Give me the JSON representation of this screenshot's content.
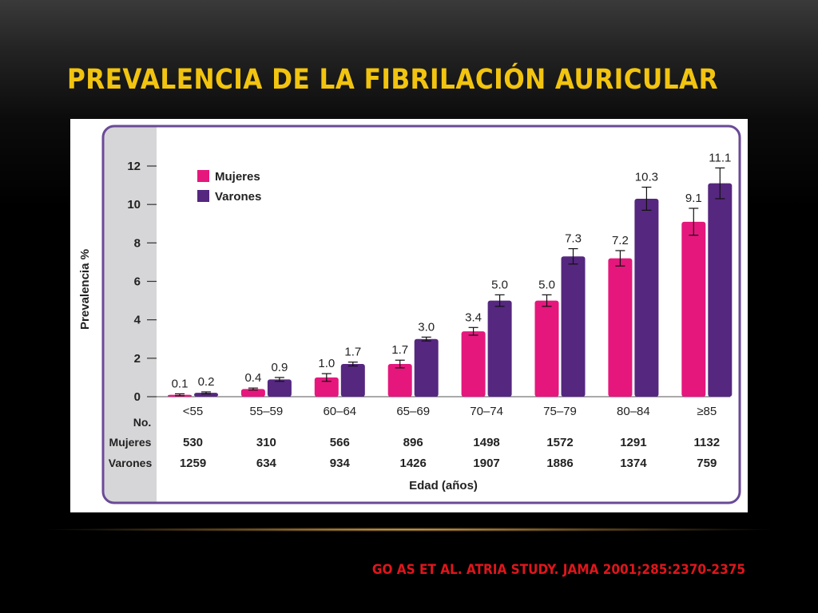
{
  "slide": {
    "title": "PREVALENCIA DE LA FIBRILACIÓN AURICULAR",
    "citation": "GO AS ET AL. ATRIA STUDY. JAMA 2001;285:2370-2375"
  },
  "table": {
    "header": "No.",
    "rows": [
      {
        "label": "Mujeres",
        "values": [
          "530",
          "310",
          "566",
          "896",
          "1498",
          "1572",
          "1291",
          "1132"
        ]
      },
      {
        "label": "Varones",
        "values": [
          "1259",
          "634",
          "934",
          "1426",
          "1907",
          "1886",
          "1374",
          "759"
        ]
      }
    ]
  },
  "chart_data": {
    "type": "bar",
    "title": "",
    "xlabel": "Edad (años)",
    "ylabel": "Prevalencia %",
    "categories": [
      "<55",
      "55–59",
      "60–64",
      "65–69",
      "70–74",
      "75–79",
      "80–84",
      "≥85"
    ],
    "series": [
      {
        "name": "Mujeres",
        "color": "#e5177d",
        "values": [
          0.1,
          0.4,
          1.0,
          1.7,
          3.4,
          5.0,
          7.2,
          9.1
        ],
        "labels": [
          "0.1",
          "0.4",
          "1.0",
          "1.7",
          "3.4",
          "5.0",
          "7.2",
          "9.1"
        ],
        "error": [
          0.05,
          0.05,
          0.2,
          0.2,
          0.2,
          0.3,
          0.4,
          0.7
        ]
      },
      {
        "name": "Varones",
        "color": "#55277f",
        "values": [
          0.2,
          0.9,
          1.7,
          3.0,
          5.0,
          7.3,
          10.3,
          11.1
        ],
        "labels": [
          "0.2",
          "0.9",
          "1.7",
          "3.0",
          "5.0",
          "7.3",
          "10.3",
          "11.1"
        ],
        "error": [
          0.05,
          0.1,
          0.1,
          0.1,
          0.3,
          0.4,
          0.6,
          0.8
        ]
      }
    ],
    "ylim": [
      0,
      12
    ],
    "yticks": [
      0,
      2,
      4,
      6,
      8,
      10,
      12
    ],
    "grid": false,
    "legend": "top-left",
    "colors": {
      "frame": "#6a4a97",
      "y_band": "#d6d6d8"
    }
  }
}
